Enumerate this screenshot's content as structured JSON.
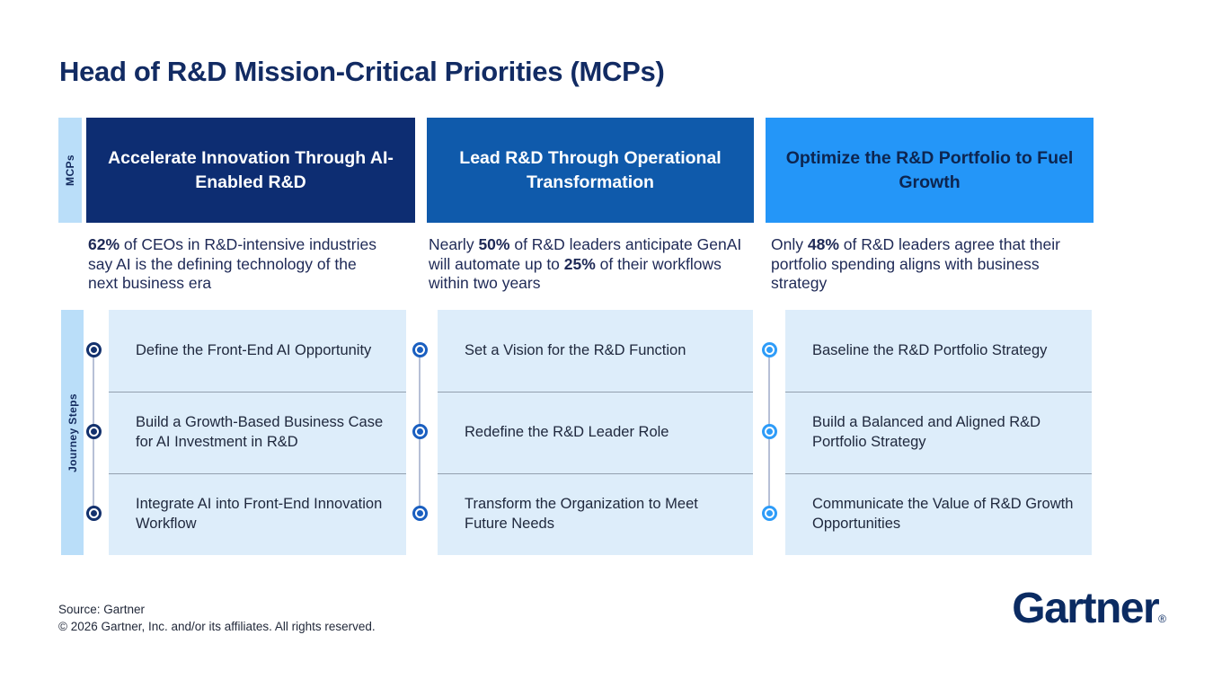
{
  "page": {
    "title": "Head of R&D Mission-Critical Priorities (MCPs)",
    "axis_mcps": "MCPs",
    "axis_journey": "Journey Steps"
  },
  "colors": {
    "title_navy": "#122b63",
    "header1_bg": "#0d2d72",
    "header2_bg": "#0f5aab",
    "header3_bg": "#2496f8",
    "header3_text": "#0d2550",
    "axis_strip_bg": "#badef9",
    "card_bg": "#ddedfa",
    "bullet1": "#13316d",
    "bullet2": "#1a5fc0",
    "bullet3": "#2e9cf8"
  },
  "columns": [
    {
      "header": "Accelerate Innovation Through AI-Enabled R&D",
      "stat": {
        "b1": "62%",
        "s2": " of CEOs in R&D-intensive industries say AI is the defining technology of the next business era"
      },
      "steps": [
        "Define the Front-End AI Opportunity",
        "Build a Growth-Based Business Case for AI Investment in R&D",
        "Integrate AI into Front-End Innovation Workflow"
      ]
    },
    {
      "header": "Lead R&D Through Operational Transformation",
      "stat": {
        "s1": "Nearly ",
        "b1": "50%",
        "s2": " of R&D leaders anticipate GenAI will automate up to ",
        "b2": "25%",
        "s3": " of their workflows within two years"
      },
      "steps": [
        "Set a Vision for the R&D Function",
        "Redefine the R&D Leader Role",
        "Transform the Organization to Meet Future Needs"
      ]
    },
    {
      "header": "Optimize the R&D Portfolio to Fuel Growth",
      "stat": {
        "s1": "Only ",
        "b1": "48%",
        "s2": " of R&D leaders agree that their portfolio spending aligns with business strategy"
      },
      "steps": [
        "Baseline the R&D Portfolio Strategy",
        "Build a Balanced and Aligned R&D Portfolio Strategy",
        "Communicate the Value of R&D Growth Opportunities"
      ]
    }
  ],
  "footer": {
    "source": "Source: Gartner",
    "copyright": "© 2026 Gartner, Inc. and/or its affiliates. All rights reserved.",
    "logo": "Gartner",
    "reg": "®"
  }
}
